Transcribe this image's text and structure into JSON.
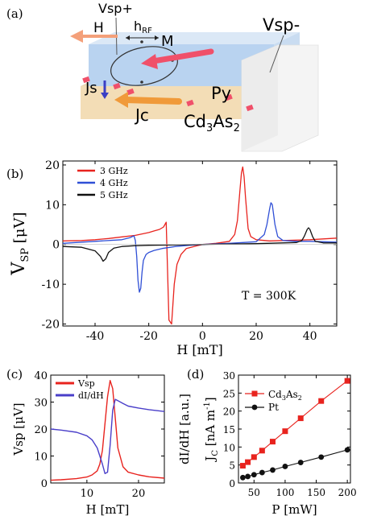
{
  "panel_labels": [
    "(a)",
    "(b)",
    "(c)",
    "(d)"
  ],
  "schematic": {
    "labels": {
      "vsp_plus": "Vsp+",
      "vsp_minus": "Vsp-",
      "h": "H",
      "h_rf_main": "h",
      "h_rf_sub": "RF",
      "m": "M",
      "js": "Js",
      "jc": "Jc",
      "py": "Py",
      "cd3as2_a": "Cd",
      "cd3as2_b": "3",
      "cd3as2_c": "As",
      "cd3as2_d": "2"
    },
    "colors": {
      "py_layer": "#b9d3f0",
      "cd3as2_layer": "#f3ddb6",
      "m_arrow": "#f0506a",
      "h_arrow": "#f4a07a",
      "jc_arrow": "#f09a3a",
      "js_arrow": "#3b3fc4"
    }
  },
  "chart_data": [
    {
      "panel": "(b)",
      "type": "line",
      "ylabel_main": "V",
      "ylabel_sub": "SP",
      "ylabel_unit": " [μV]",
      "xlabel": "H [mT]",
      "xlim": [
        -52,
        50
      ],
      "ylim": [
        -20.5,
        21
      ],
      "xticks": [
        -40,
        -20,
        0,
        20,
        40
      ],
      "yticks": [
        -20,
        -10,
        0,
        10,
        20
      ],
      "annotation": "T = 300K",
      "legend_position": "top-left",
      "series": [
        {
          "name": "3 GHz",
          "color": "#e8231e",
          "x": [
            -52,
            -45,
            -40,
            -35,
            -30,
            -25,
            -20,
            -18,
            -16,
            -14.5,
            -13.5,
            -12.5,
            -11.5,
            -10.5,
            -9.5,
            -8,
            -6,
            -2,
            0,
            5,
            10,
            12,
            13,
            14,
            14.5,
            15,
            15.5,
            16,
            17,
            18,
            20,
            25,
            30,
            40,
            50
          ],
          "y": [
            0.9,
            1.0,
            1.2,
            1.5,
            1.9,
            2.3,
            3.0,
            3.4,
            3.8,
            4.4,
            5.6,
            -19.0,
            -20.0,
            -10,
            -5,
            -2.5,
            -1.0,
            -0.3,
            0,
            0.3,
            0.8,
            2.5,
            6,
            14,
            18,
            19.5,
            17,
            12,
            4,
            2.0,
            1.2,
            0.9,
            1.0,
            1.2,
            1.6
          ]
        },
        {
          "name": "4 GHz",
          "color": "#2f4fd6",
          "x": [
            -52,
            -40,
            -30,
            -27,
            -25.5,
            -25,
            -24.5,
            -24,
            -23.5,
            -23,
            -22.5,
            -22,
            -21,
            -20,
            -18,
            -15,
            -10,
            -5,
            0,
            10,
            20,
            23,
            24,
            25,
            25.5,
            26,
            27,
            28,
            30,
            35,
            40,
            50
          ],
          "y": [
            0.3,
            0.8,
            1.2,
            1.7,
            2.2,
            1.0,
            -3,
            -9,
            -12,
            -11,
            -7,
            -4,
            -2.5,
            -2,
            -1.5,
            -1.0,
            -0.5,
            -0.2,
            0,
            0.3,
            0.7,
            2.5,
            5,
            9,
            10.5,
            10,
            5,
            2,
            1.0,
            0.8,
            0.8,
            0.6
          ]
        },
        {
          "name": "5 GHz",
          "color": "#111111",
          "x": [
            -52,
            -45,
            -40,
            -38,
            -37,
            -36,
            -35,
            -33,
            -30,
            -25,
            -20,
            -10,
            0,
            20,
            35,
            37,
            38,
            39,
            39.5,
            40,
            41,
            42,
            45,
            50
          ],
          "y": [
            -0.5,
            -0.7,
            -1.6,
            -3.0,
            -4.2,
            -3.6,
            -2.0,
            -0.9,
            -0.5,
            -0.3,
            -0.2,
            -0.1,
            0,
            0.2,
            0.5,
            1.0,
            2.2,
            3.8,
            4.2,
            3.8,
            2.0,
            0.8,
            0.4,
            0.4
          ]
        }
      ]
    },
    {
      "panel": "(c)",
      "type": "line",
      "ylabel": "Vsp [μV]",
      "y2label": "dI/dH [a.u.]",
      "xlabel": "H [mT]",
      "xlim": [
        3,
        25
      ],
      "ylim": [
        0,
        40
      ],
      "xticks": [
        10,
        20
      ],
      "yticks": [
        0,
        10,
        20,
        30,
        40
      ],
      "legend_position": "top-left",
      "series": [
        {
          "name": "Vsp",
          "color": "#e8231e",
          "x": [
            3,
            5,
            8,
            10,
            11,
            12,
            12.5,
            13,
            13.5,
            14,
            14.5,
            15,
            15.5,
            16,
            17,
            18,
            20,
            22,
            25
          ],
          "y": [
            1.0,
            1.2,
            1.6,
            2.2,
            3.0,
            4.5,
            7,
            12,
            22,
            32,
            38,
            35,
            24,
            13,
            6,
            4,
            3,
            2.3,
            1.8
          ]
        },
        {
          "name": "dI/dH",
          "color": "#4a3fc9",
          "x": [
            3,
            5,
            8,
            10,
            11,
            12,
            13,
            13.5,
            14,
            14.5,
            15,
            15.5,
            16,
            17,
            18,
            20,
            22,
            25
          ],
          "y": [
            20,
            19.6,
            18.8,
            17.5,
            16,
            13,
            7,
            3.5,
            4,
            14,
            27,
            31,
            30.5,
            29.5,
            28.5,
            27.8,
            27.2,
            26.5
          ]
        }
      ]
    },
    {
      "panel": "(d)",
      "type": "line",
      "ylabel_main": "J",
      "ylabel_sub": "C",
      "ylabel_unit": " [nA m",
      "ylabel_sup": "-1",
      "ylabel_end": "]",
      "xlabel": "P [mW]",
      "xlim": [
        25,
        205
      ],
      "ylim": [
        0,
        30
      ],
      "xticks": [
        50,
        100,
        150,
        200
      ],
      "yticks": [
        0,
        5,
        10,
        15,
        20,
        25,
        30
      ],
      "legend_position": "top-left",
      "series": [
        {
          "name_main": "Cd",
          "name_sub1": "3",
          "name_mid": "As",
          "name_sub2": "2",
          "name": "Cd3As2",
          "color": "#e8231e",
          "marker": "square",
          "x": [
            32,
            40,
            50,
            63,
            80,
            100,
            125,
            158,
            200
          ],
          "y": [
            4.8,
            5.8,
            7.2,
            9.0,
            11.5,
            14.4,
            18.0,
            22.8,
            28.4
          ]
        },
        {
          "name": "Pt",
          "color": "#111111",
          "marker": "circle",
          "x": [
            32,
            40,
            50,
            63,
            80,
            100,
            125,
            158,
            200
          ],
          "y": [
            1.5,
            1.8,
            2.3,
            2.9,
            3.6,
            4.6,
            5.7,
            7.2,
            9.2
          ]
        }
      ]
    }
  ]
}
